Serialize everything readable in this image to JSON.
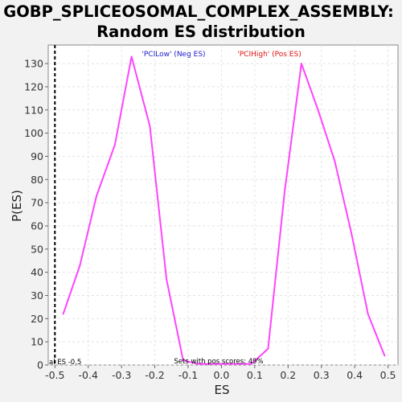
{
  "chart_data": {
    "type": "line",
    "title_line1": "GOBP_SPLICEOSOMAL_COMPLEX_ASSEMBLY:",
    "title_line2": "Random ES distribution",
    "xlabel": "ES",
    "ylabel": "P(ES)",
    "xlim": [
      -0.52,
      0.53
    ],
    "ylim": [
      0,
      138
    ],
    "xticks": [
      "-0.5",
      "-0.4",
      "-0.3",
      "-0.2",
      "-0.1",
      "0.0",
      "0.1",
      "0.2",
      "0.3",
      "0.4",
      "0.5"
    ],
    "xtick_values": [
      -0.5,
      -0.4,
      -0.3,
      -0.2,
      -0.1,
      0.0,
      0.1,
      0.2,
      0.3,
      0.4,
      0.5
    ],
    "yticks": [
      "0",
      "10",
      "20",
      "30",
      "40",
      "50",
      "60",
      "70",
      "80",
      "90",
      "100",
      "110",
      "120",
      "130"
    ],
    "ytick_values": [
      0,
      10,
      20,
      30,
      40,
      50,
      60,
      70,
      80,
      90,
      100,
      110,
      120,
      130
    ],
    "grid": true,
    "series": [
      {
        "color": "#ff44ff",
        "points": [
          [
            -0.475,
            22
          ],
          [
            -0.425,
            43
          ],
          [
            -0.375,
            73
          ],
          [
            -0.32,
            95
          ],
          [
            -0.27,
            133
          ],
          [
            -0.215,
            103
          ],
          [
            -0.165,
            37
          ],
          [
            -0.115,
            2
          ],
          [
            -0.07,
            0.5
          ],
          [
            0.0,
            0.5
          ],
          [
            0.09,
            0.5
          ],
          [
            0.14,
            7
          ],
          [
            0.19,
            75
          ],
          [
            0.24,
            130
          ],
          [
            0.29,
            110
          ],
          [
            0.34,
            88
          ],
          [
            0.39,
            57
          ],
          [
            0.44,
            22
          ],
          [
            0.49,
            4
          ]
        ]
      }
    ],
    "actual_es_line": -0.5,
    "legend": [
      {
        "label": "'PCILow' (Neg ES)",
        "color": "#1a1acc"
      },
      {
        "label": "'PCIHigh' (Pos ES)",
        "color": "#e01010"
      }
    ],
    "annotations": {
      "actual_es": "al ES -0.5",
      "pos_scores": "Sets with pos scores: 49%"
    }
  }
}
